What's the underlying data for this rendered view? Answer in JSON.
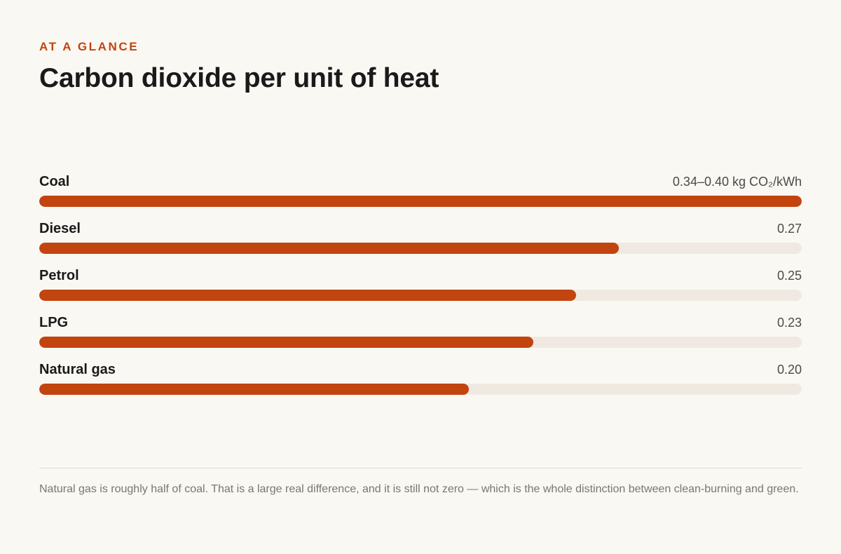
{
  "header": {
    "eyebrow": "AT A GLANCE",
    "title": "Carbon dioxide per unit of heat"
  },
  "chart_data": {
    "type": "bar",
    "orientation": "horizontal",
    "unit": "kg CO₂/kWh",
    "xlim": [
      0,
      0.355
    ],
    "categories": [
      "Coal",
      "Diesel",
      "Petrol",
      "LPG",
      "Natural gas"
    ],
    "values": [
      0.355,
      0.27,
      0.25,
      0.23,
      0.2
    ],
    "value_labels": [
      "0.34–0.40 kg CO₂/kWh",
      "0.27",
      "0.25",
      "0.23",
      "0.20"
    ],
    "colors": {
      "bar": "#c2440f",
      "track": "#efe9e1"
    },
    "grid": false
  },
  "footer": {
    "note": "Natural gas is roughly half of coal. That is a large real difference, and it is still not zero — which is the whole distinction between clean-burning and green."
  }
}
